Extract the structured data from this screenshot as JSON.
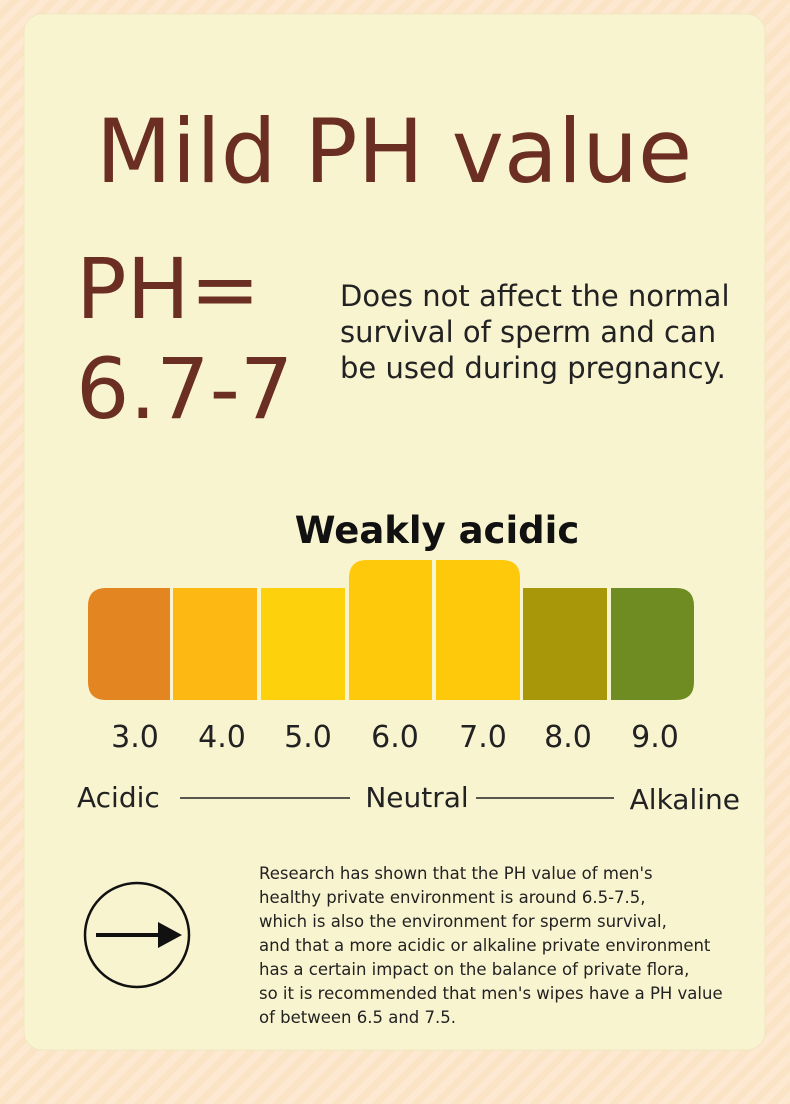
{
  "header": {
    "title": "Mild PH value"
  },
  "ph": {
    "line1": "PH=",
    "line2": "6.7-7",
    "description": [
      "Does not affect the normal",
      "survival of sperm and can",
      "be used during pregnancy."
    ]
  },
  "scale": {
    "title": "Weakly acidic",
    "labels": [
      "3.0",
      "4.0",
      "5.0",
      "6.0",
      "7.0",
      "8.0",
      "9.0"
    ],
    "ends": {
      "left": "Acidic",
      "middle": "Neutral",
      "right": "Alkaline"
    }
  },
  "note": {
    "lines": [
      "Research has shown that the PH value of men's",
      "healthy private environment is around 6.5-7.5,",
      "which is also the environment for sperm survival,",
      "and that a more acidic or alkaline private environment",
      "has a certain impact on the balance of private flora,",
      "so it is recommended that men's wipes have a PH value",
      "of between 6.5 and 7.5."
    ]
  }
}
